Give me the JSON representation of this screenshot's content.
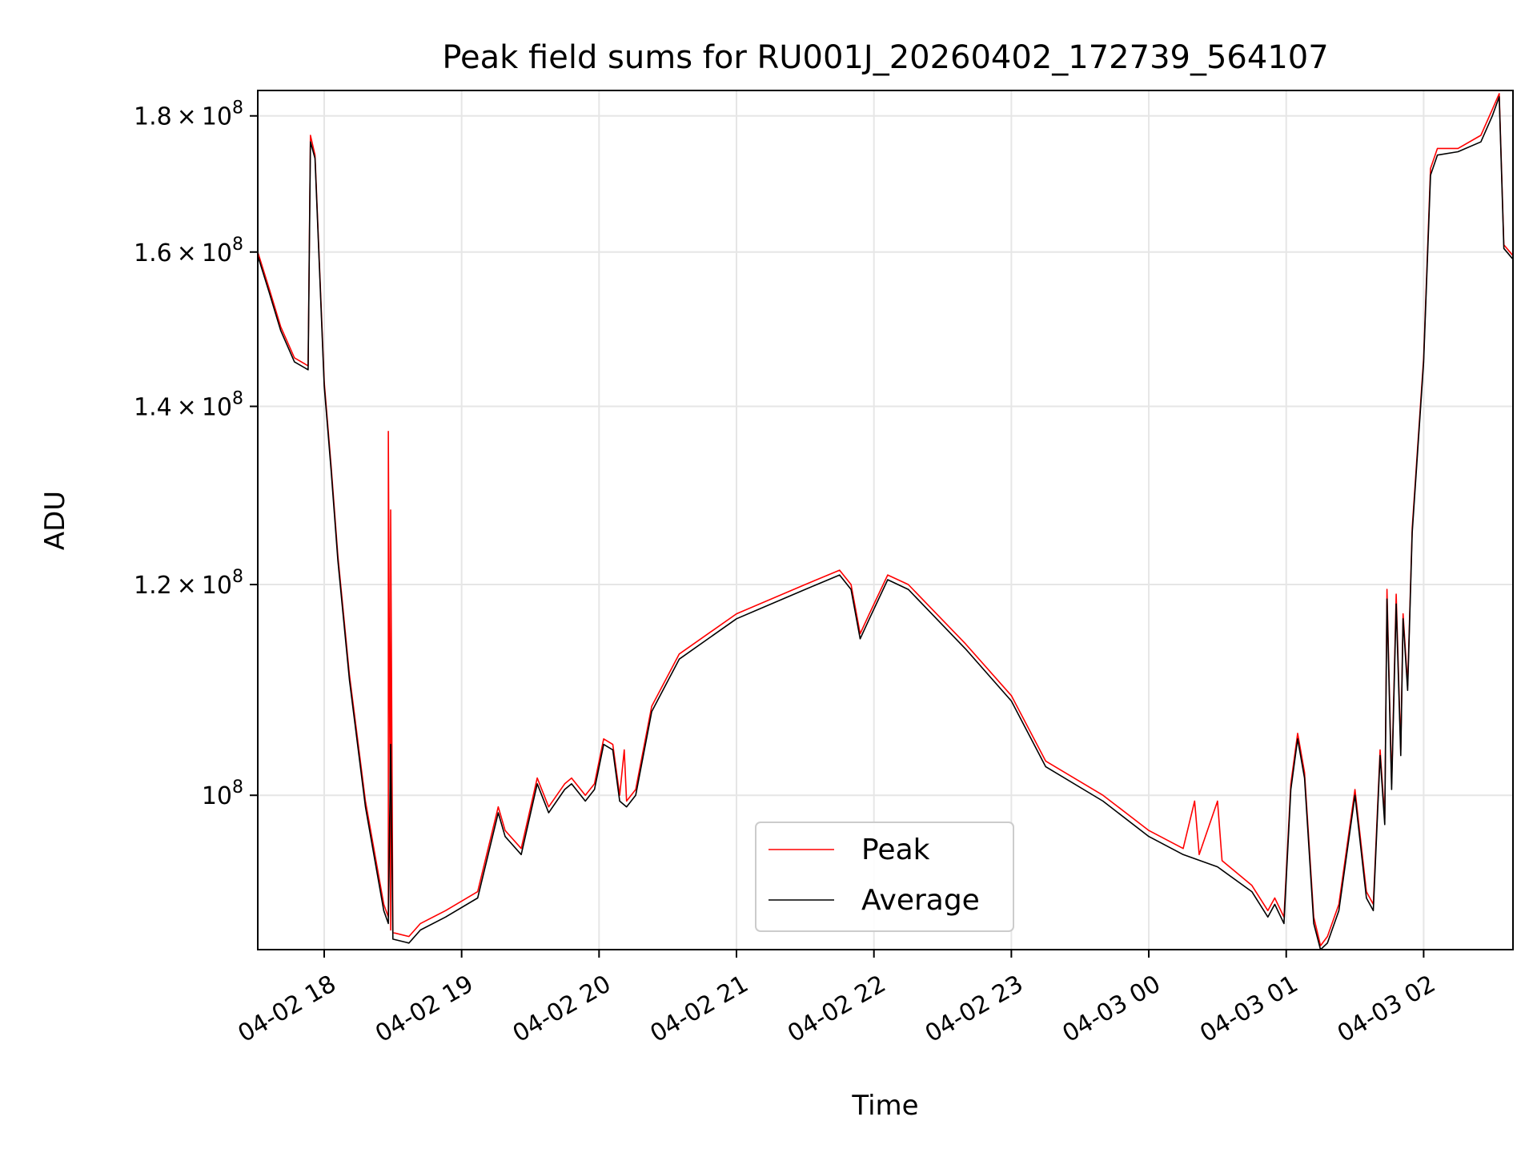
{
  "chart_data": {
    "type": "line",
    "title": "Peak field sums for RU001J_20260402_172739_564107",
    "xlabel": "Time",
    "ylabel": "ADU",
    "yscale": "log",
    "grid": true,
    "legend_position": "bottom-center",
    "xlim": [
      "2026-04-02 17:31",
      "2026-04-03 02:39"
    ],
    "ylim": [
      87500000,
      184000000
    ],
    "x_ticks": [
      {
        "value": "2026-04-02 18:00",
        "label": "04-02 18"
      },
      {
        "value": "2026-04-02 19:00",
        "label": "04-02 19"
      },
      {
        "value": "2026-04-02 20:00",
        "label": "04-02 20"
      },
      {
        "value": "2026-04-02 21:00",
        "label": "04-02 21"
      },
      {
        "value": "2026-04-02 22:00",
        "label": "04-02 22"
      },
      {
        "value": "2026-04-02 23:00",
        "label": "04-02 23"
      },
      {
        "value": "2026-04-03 00:00",
        "label": "04-03 00"
      },
      {
        "value": "2026-04-03 01:00",
        "label": "04-03 01"
      },
      {
        "value": "2026-04-03 02:00",
        "label": "04-03 02"
      }
    ],
    "y_ticks": [
      {
        "value": 100000000,
        "mantissa": "",
        "exponent": "8"
      },
      {
        "value": 120000000,
        "mantissa": "1.2",
        "exponent": "8"
      },
      {
        "value": 140000000,
        "mantissa": "1.4",
        "exponent": "8"
      },
      {
        "value": 160000000,
        "mantissa": "1.6",
        "exponent": "8"
      },
      {
        "value": 180000000,
        "mantissa": "1.8",
        "exponent": "8"
      }
    ],
    "colors": {
      "Peak": "#ff0000",
      "Average": "#000000"
    },
    "series": [
      {
        "name": "Peak",
        "points": [
          [
            "2026-04-02 17:31",
            160000000
          ],
          [
            "2026-04-02 17:36",
            155000000
          ],
          [
            "2026-04-02 17:41",
            150000000
          ],
          [
            "2026-04-02 17:47",
            146000000
          ],
          [
            "2026-04-02 17:53",
            145000000
          ],
          [
            "2026-04-02 17:54",
            177000000
          ],
          [
            "2026-04-02 17:56",
            174000000
          ],
          [
            "2026-04-02 18:00",
            143000000
          ],
          [
            "2026-04-02 18:03",
            133000000
          ],
          [
            "2026-04-02 18:06",
            123000000
          ],
          [
            "2026-04-02 18:11",
            111000000
          ],
          [
            "2026-04-02 18:18",
            99500000
          ],
          [
            "2026-04-02 18:26",
            91000000
          ],
          [
            "2026-04-02 18:28",
            90000000
          ],
          [
            "2026-04-02 18:28",
            137000000
          ],
          [
            "2026-04-02 18:29",
            89000000
          ],
          [
            "2026-04-02 18:29",
            128000000
          ],
          [
            "2026-04-02 18:30",
            88800000
          ],
          [
            "2026-04-02 18:37",
            88500000
          ],
          [
            "2026-04-02 18:42",
            89500000
          ],
          [
            "2026-04-02 18:53",
            90500000
          ],
          [
            "2026-04-02 19:07",
            92000000
          ],
          [
            "2026-04-02 19:16",
            99000000
          ],
          [
            "2026-04-02 19:19",
            97000000
          ],
          [
            "2026-04-02 19:26",
            95500000
          ],
          [
            "2026-04-02 19:33",
            101500000
          ],
          [
            "2026-04-02 19:38",
            99000000
          ],
          [
            "2026-04-02 19:45",
            101000000
          ],
          [
            "2026-04-02 19:48",
            101500000
          ],
          [
            "2026-04-02 19:54",
            100000000
          ],
          [
            "2026-04-02 19:58",
            101000000
          ],
          [
            "2026-04-02 20:02",
            105000000
          ],
          [
            "2026-04-02 20:06",
            104500000
          ],
          [
            "2026-04-02 20:09",
            100000000
          ],
          [
            "2026-04-02 20:11",
            104000000
          ],
          [
            "2026-04-02 20:12",
            99500000
          ],
          [
            "2026-04-02 20:16",
            100500000
          ],
          [
            "2026-04-02 20:23",
            108000000
          ],
          [
            "2026-04-02 20:35",
            113000000
          ],
          [
            "2026-04-02 21:00",
            117000000
          ],
          [
            "2026-04-02 21:30",
            120000000
          ],
          [
            "2026-04-02 21:45",
            121500000
          ],
          [
            "2026-04-02 21:50",
            120000000
          ],
          [
            "2026-04-02 21:54",
            115000000
          ],
          [
            "2026-04-02 21:58",
            117000000
          ],
          [
            "2026-04-02 22:06",
            121000000
          ],
          [
            "2026-04-02 22:15",
            120000000
          ],
          [
            "2026-04-02 22:40",
            114000000
          ],
          [
            "2026-04-02 23:00",
            109000000
          ],
          [
            "2026-04-02 23:15",
            103000000
          ],
          [
            "2026-04-02 23:40",
            100000000
          ],
          [
            "2026-04-03 00:00",
            97000000
          ],
          [
            "2026-04-03 00:15",
            95500000
          ],
          [
            "2026-04-03 00:20",
            99500000
          ],
          [
            "2026-04-03 00:22",
            95000000
          ],
          [
            "2026-04-03 00:30",
            99500000
          ],
          [
            "2026-04-03 00:32",
            94500000
          ],
          [
            "2026-04-03 00:45",
            92500000
          ],
          [
            "2026-04-03 00:52",
            90500000
          ],
          [
            "2026-04-03 00:55",
            91500000
          ],
          [
            "2026-04-03 00:59",
            90000000
          ],
          [
            "2026-04-03 01:02",
            101000000
          ],
          [
            "2026-04-03 01:05",
            105500000
          ],
          [
            "2026-04-03 01:08",
            102000000
          ],
          [
            "2026-04-03 01:12",
            90000000
          ],
          [
            "2026-04-03 01:15",
            87800000
          ],
          [
            "2026-04-03 01:18",
            88500000
          ],
          [
            "2026-04-03 01:23",
            91000000
          ],
          [
            "2026-04-03 01:30",
            100500000
          ],
          [
            "2026-04-03 01:35",
            92000000
          ],
          [
            "2026-04-03 01:38",
            91000000
          ],
          [
            "2026-04-03 01:41",
            104000000
          ],
          [
            "2026-04-03 01:43",
            98000000
          ],
          [
            "2026-04-03 01:44",
            119500000
          ],
          [
            "2026-04-03 01:46",
            101000000
          ],
          [
            "2026-04-03 01:48",
            119000000
          ],
          [
            "2026-04-03 01:50",
            104000000
          ],
          [
            "2026-04-03 01:51",
            117000000
          ],
          [
            "2026-04-03 01:53",
            110000000
          ],
          [
            "2026-04-03 01:55",
            126000000
          ],
          [
            "2026-04-03 02:00",
            146000000
          ],
          [
            "2026-04-03 02:03",
            172000000
          ],
          [
            "2026-04-03 02:06",
            175000000
          ],
          [
            "2026-04-03 02:15",
            175000000
          ],
          [
            "2026-04-03 02:25",
            177000000
          ],
          [
            "2026-04-03 02:30",
            181000000
          ],
          [
            "2026-04-03 02:33",
            183500000
          ],
          [
            "2026-04-03 02:35",
            161000000
          ],
          [
            "2026-04-03 02:39",
            159500000
          ]
        ]
      },
      {
        "name": "Average",
        "points": [
          [
            "2026-04-02 17:31",
            159500000
          ],
          [
            "2026-04-02 17:36",
            154500000
          ],
          [
            "2026-04-02 17:41",
            149500000
          ],
          [
            "2026-04-02 17:47",
            145500000
          ],
          [
            "2026-04-02 17:53",
            144500000
          ],
          [
            "2026-04-02 17:54",
            176000000
          ],
          [
            "2026-04-02 17:56",
            173500000
          ],
          [
            "2026-04-02 18:00",
            142500000
          ],
          [
            "2026-04-02 18:03",
            132500000
          ],
          [
            "2026-04-02 18:06",
            122500000
          ],
          [
            "2026-04-02 18:11",
            110500000
          ],
          [
            "2026-04-02 18:18",
            99000000
          ],
          [
            "2026-04-02 18:26",
            90500000
          ],
          [
            "2026-04-02 18:28",
            89500000
          ],
          [
            "2026-04-02 18:29",
            104500000
          ],
          [
            "2026-04-02 18:30",
            88300000
          ],
          [
            "2026-04-02 18:37",
            88000000
          ],
          [
            "2026-04-02 18:42",
            89000000
          ],
          [
            "2026-04-02 18:53",
            90000000
          ],
          [
            "2026-04-02 19:07",
            91500000
          ],
          [
            "2026-04-02 19:16",
            98500000
          ],
          [
            "2026-04-02 19:19",
            96500000
          ],
          [
            "2026-04-02 19:26",
            95000000
          ],
          [
            "2026-04-02 19:33",
            101000000
          ],
          [
            "2026-04-02 19:38",
            98500000
          ],
          [
            "2026-04-02 19:45",
            100500000
          ],
          [
            "2026-04-02 19:48",
            101000000
          ],
          [
            "2026-04-02 19:54",
            99500000
          ],
          [
            "2026-04-02 19:58",
            100500000
          ],
          [
            "2026-04-02 20:02",
            104500000
          ],
          [
            "2026-04-02 20:06",
            104000000
          ],
          [
            "2026-04-02 20:09",
            99500000
          ],
          [
            "2026-04-02 20:12",
            99000000
          ],
          [
            "2026-04-02 20:16",
            100000000
          ],
          [
            "2026-04-02 20:23",
            107500000
          ],
          [
            "2026-04-02 20:35",
            112500000
          ],
          [
            "2026-04-02 21:00",
            116500000
          ],
          [
            "2026-04-02 21:30",
            119500000
          ],
          [
            "2026-04-02 21:45",
            121000000
          ],
          [
            "2026-04-02 21:50",
            119500000
          ],
          [
            "2026-04-02 21:54",
            114500000
          ],
          [
            "2026-04-02 21:58",
            116500000
          ],
          [
            "2026-04-02 22:06",
            120500000
          ],
          [
            "2026-04-02 22:15",
            119500000
          ],
          [
            "2026-04-02 22:40",
            113500000
          ],
          [
            "2026-04-02 23:00",
            108500000
          ],
          [
            "2026-04-02 23:15",
            102500000
          ],
          [
            "2026-04-02 23:40",
            99500000
          ],
          [
            "2026-04-03 00:00",
            96500000
          ],
          [
            "2026-04-03 00:15",
            95000000
          ],
          [
            "2026-04-03 00:30",
            94000000
          ],
          [
            "2026-04-03 00:45",
            92000000
          ],
          [
            "2026-04-03 00:52",
            90000000
          ],
          [
            "2026-04-03 00:55",
            91000000
          ],
          [
            "2026-04-03 00:59",
            89500000
          ],
          [
            "2026-04-03 01:02",
            100500000
          ],
          [
            "2026-04-03 01:05",
            105000000
          ],
          [
            "2026-04-03 01:08",
            101500000
          ],
          [
            "2026-04-03 01:12",
            89500000
          ],
          [
            "2026-04-03 01:15",
            87500000
          ],
          [
            "2026-04-03 01:18",
            88000000
          ],
          [
            "2026-04-03 01:23",
            90500000
          ],
          [
            "2026-04-03 01:30",
            100000000
          ],
          [
            "2026-04-03 01:35",
            91500000
          ],
          [
            "2026-04-03 01:38",
            90500000
          ],
          [
            "2026-04-03 01:41",
            103500000
          ],
          [
            "2026-04-03 01:43",
            97500000
          ],
          [
            "2026-04-03 01:44",
            118500000
          ],
          [
            "2026-04-03 01:46",
            100500000
          ],
          [
            "2026-04-03 01:48",
            118000000
          ],
          [
            "2026-04-03 01:50",
            103500000
          ],
          [
            "2026-04-03 01:51",
            116500000
          ],
          [
            "2026-04-03 01:53",
            109500000
          ],
          [
            "2026-04-03 01:55",
            125500000
          ],
          [
            "2026-04-03 02:00",
            145500000
          ],
          [
            "2026-04-03 02:03",
            171000000
          ],
          [
            "2026-04-03 02:06",
            174000000
          ],
          [
            "2026-04-03 02:15",
            174500000
          ],
          [
            "2026-04-03 02:25",
            176000000
          ],
          [
            "2026-04-03 02:30",
            180000000
          ],
          [
            "2026-04-03 02:33",
            183000000
          ],
          [
            "2026-04-03 02:35",
            160500000
          ],
          [
            "2026-04-03 02:39",
            159000000
          ]
        ]
      }
    ]
  }
}
